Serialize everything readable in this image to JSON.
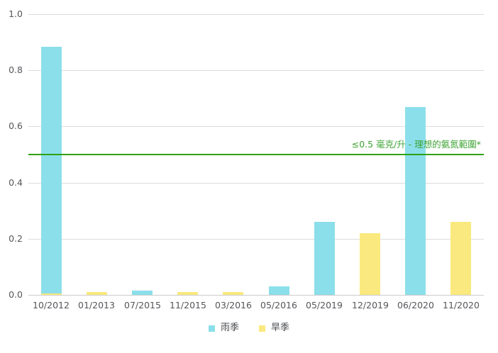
{
  "chart_data": {
    "type": "bar",
    "title": "",
    "xlabel": "",
    "ylabel": "",
    "categories": [
      "10/2012",
      "01/2013",
      "07/2015",
      "11/2015",
      "03/2016",
      "05/2016",
      "05/2019",
      "12/2019",
      "06/2020",
      "11/2020"
    ],
    "series": [
      {
        "name": "雨季",
        "color": "#8BDFEA",
        "values": [
          0.885,
          0,
          0.015,
          0,
          0,
          0.03,
          0.26,
          0,
          0.67,
          0
        ]
      },
      {
        "name": "旱季",
        "color": "#FAE97E",
        "values": [
          0.005,
          0.01,
          0,
          0.01,
          0.01,
          0,
          0,
          0.22,
          0,
          0.26
        ]
      }
    ],
    "bar_mode": "overlay",
    "ylim": [
      0,
      1.0
    ],
    "yticks": [
      0,
      0.2,
      0.4,
      0.6,
      0.8,
      1.0
    ],
    "ytick_labels": [
      "0.0",
      "0.2",
      "0.4",
      "0.6",
      "0.8",
      "1.0"
    ],
    "grid": true,
    "legend_position": "bottom-center",
    "reference_line": {
      "value": 0.5,
      "label": "≤0.5 毫克/升 - 理想的氨氮範圍*",
      "line_color": "#2FA313",
      "label_color": "#3EA435"
    }
  },
  "colors": {
    "background": "#FFFFFF",
    "gridline": "#DDDDDD",
    "axis_baseline": "#CBCBCB",
    "axis_text": "#54565A"
  }
}
